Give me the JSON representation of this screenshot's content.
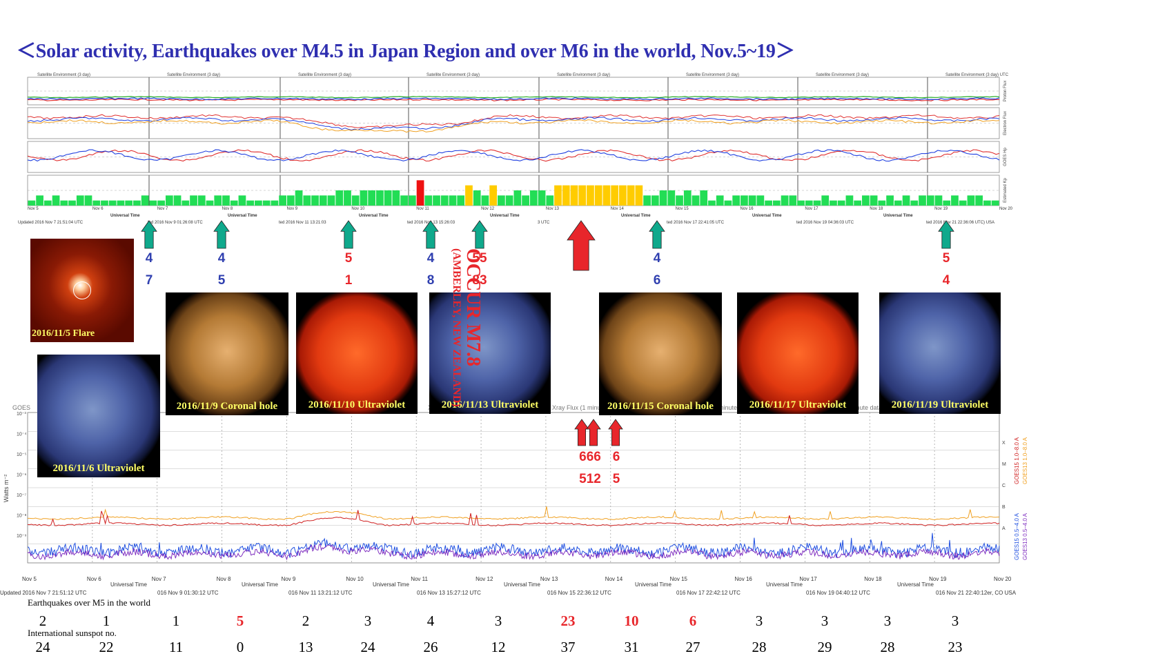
{
  "title": "＜Solar activity, Earthquakes over M4.5 in Japan Region and over M6 in the world, Nov.5~19＞",
  "colors": {
    "title": "#2f2fb0",
    "arrow_teal": "#0fa98c",
    "arrow_red": "#e8262b",
    "kp_green": "#22dd55",
    "kp_yellow": "#ffcc00",
    "kp_red": "#ee1111",
    "proton": "#e03030",
    "electron": "#2040e0",
    "xray_long": "#d02020",
    "xray_long_goes13": "#f0a020",
    "xray_short": "#2050e0",
    "xray_short_goes13": "#8030c0"
  },
  "top_panel_headers": [
    "Satellite Environment (3 day)",
    "Satellite Environment (3 day)",
    "Satellite Environment (3 day)",
    "Satellite Environment (3 day)",
    "Satellite Environment (3 day)",
    "Satellite Environment (3 day)",
    "Satellite Environment (3 day)",
    "Satellite Environment (3 day) UTC"
  ],
  "top_axis_labels": [
    "Proton Flux",
    "Electron Flux",
    "GOES Hp",
    "Estimated Kp"
  ],
  "top_updated": [
    "Updated 2016 Nov  7 21:51:04 UTC",
    "ted 2016 Nov  9 01:26:08 UTC",
    "ted 2016 Nov 11 13:21:03",
    "ted 2016 Nov 13 15:26:03",
    "3 UTC",
    "ted 2016 Nov 17 22:41:05 UTC",
    "ted 2016 Nov 19 04:36:03 UTC",
    "ted 2016 Nov 21 22:36:06 UTC) USA"
  ],
  "top_universal_time": "Universal Time",
  "x_days": [
    "Nov 5",
    "Nov 6",
    "Nov 7",
    "Nov 8",
    "Nov 9",
    "Nov 10",
    "Nov 11",
    "Nov 12",
    "Nov 13",
    "Nov 14",
    "Nov 15",
    "Nov 16",
    "Nov 17",
    "Nov 18",
    "Nov 19",
    "Nov 20"
  ],
  "japan_arrows": [
    {
      "mag": "4",
      "count": "7",
      "color": "teal"
    },
    {
      "mag": "4",
      "count": "5",
      "color": "teal"
    },
    {
      "mag": "5",
      "count": "1",
      "color": "teal"
    },
    {
      "mag": "4",
      "count": "8",
      "color": "teal"
    },
    {
      "mag": "55",
      "count": "83",
      "color": "teal"
    },
    {
      "mag": "4",
      "count": "6",
      "color": "teal"
    },
    {
      "mag": "5",
      "count": "4",
      "color": "teal"
    }
  ],
  "occur_text": "OCCUR M7.8",
  "occur_location": "(AMBERLEY, NEW ZEALAND)",
  "occur_mag_lines": [
    "M7.",
    "8"
  ],
  "world_arrows": [
    {
      "top": "666",
      "bottom": "512"
    },
    {
      "top": "6",
      "bottom": "5"
    }
  ],
  "solar_images": [
    {
      "caption": "2016/11/5 Flare",
      "type": "flare"
    },
    {
      "caption": "2016/11/6 Ultraviolet",
      "type": "uv"
    },
    {
      "caption": "2016/11/9 Coronal hole",
      "type": "coronal"
    },
    {
      "caption": "2016/11/10 Ultraviolet",
      "type": "red"
    },
    {
      "caption": "2016/11/13 Ultraviolet",
      "type": "uv"
    },
    {
      "caption": "2016/11/15 Coronal hole",
      "type": "coronal"
    },
    {
      "caption": "2016/11/17 Ultraviolet",
      "type": "red"
    },
    {
      "caption": "2016/11/19 Ultraviolet",
      "type": "uv"
    }
  ],
  "xray_headers": [
    "GOES",
    "Xray Flux (1 minute data)",
    "Xray Flux (1 minute data)",
    "Xray Flux (1 minute data)",
    "Xray Flux (1 minute data)",
    "Xray Flux (1 minute data)",
    "Xray Flux (1 minute data)",
    "0000 UTC"
  ],
  "xray_ylabel": "Watts m⁻²",
  "xray_right_labels": [
    "GOES15 0.5–4.0 A",
    "GOES13 0.5–4.0 A",
    "GOES15 1.0–8.0 A",
    "GOES13 1.0–8.0 A"
  ],
  "xray_class_labels": [
    "X",
    "M",
    "C",
    "B",
    "A"
  ],
  "xray_updated": [
    "Updated 2016 Nov  7 21:51:12 UTC",
    "016 Nov  9 01:30:12 UTC",
    "016 Nov 11 13:21:12 UTC",
    "016 Nov 13 15:27:12 UTC",
    "016 Nov 15 22:36:12 UTC",
    "016 Nov 17 22:42:12 UTC",
    "016 Nov 19 04:40:12 UTC",
    "016 Nov 21 22:40:12er, CO USA"
  ],
  "earthquake_label": "Earthquakes over M5 in the world",
  "sunspot_label": "International sunspot no.",
  "chart_data": {
    "type": "table",
    "title": "＜Solar activity, Earthquakes over M4.5 in Japan Region and over M6 in the world, Nov.5~19＞",
    "categories": [
      "Nov 5",
      "Nov 6",
      "Nov 7",
      "Nov 8",
      "Nov 9",
      "Nov 10",
      "Nov 11",
      "Nov 12",
      "Nov 13",
      "Nov 14",
      "Nov 15",
      "Nov 16",
      "Nov 17",
      "Nov 18",
      "Nov 19"
    ],
    "series": [
      {
        "name": "Earthquakes over M5 in the world",
        "values": [
          2,
          1,
          1,
          5,
          2,
          3,
          4,
          3,
          23,
          10,
          6,
          3,
          3,
          3,
          3
        ],
        "highlight": [
          false,
          false,
          false,
          true,
          false,
          false,
          false,
          false,
          true,
          true,
          true,
          false,
          false,
          false,
          false
        ]
      },
      {
        "name": "International sunspot no.",
        "values": [
          24,
          22,
          11,
          0,
          13,
          24,
          26,
          12,
          37,
          31,
          27,
          28,
          29,
          28,
          23
        ]
      }
    ]
  }
}
